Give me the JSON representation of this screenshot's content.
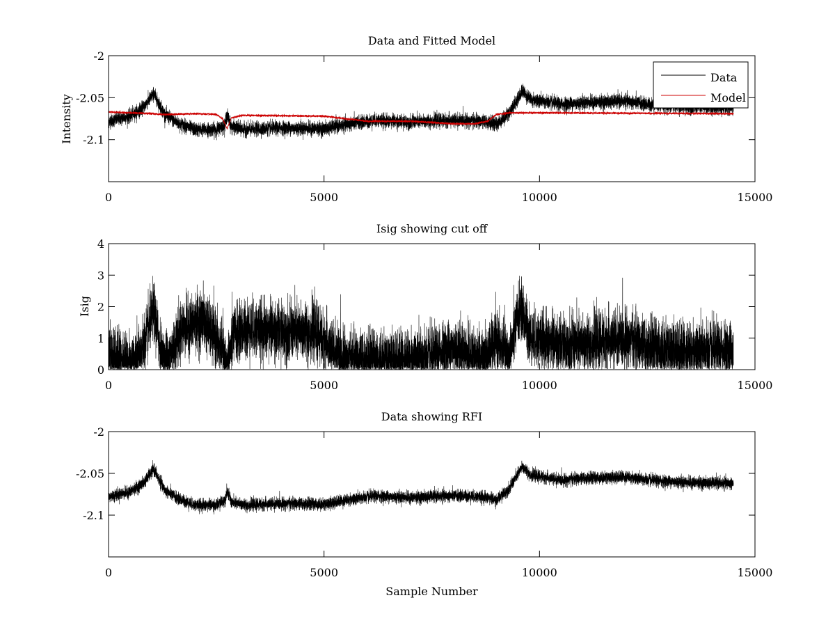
{
  "chart_data": [
    {
      "type": "line",
      "title": "Data and Fitted Model",
      "xlabel": "",
      "ylabel": "Intensity",
      "xlim": [
        0,
        15000
      ],
      "ylim": [
        -2.15,
        -2.0
      ],
      "x_ticks": [
        0,
        5000,
        10000,
        15000
      ],
      "y_ticks": [
        -2.1,
        -2.05,
        -2.0
      ],
      "x_tick_labels": [
        "0",
        "5000",
        "10000",
        "15000"
      ],
      "y_tick_labels": [
        "-2.1",
        "-2.05",
        "-2"
      ],
      "grid": false,
      "legend_placement": "top-right",
      "series": [
        {
          "name": "Data",
          "color": "#000000",
          "noise": 0.004,
          "x": [
            0,
            500,
            800,
            1050,
            1300,
            1600,
            2000,
            2500,
            2700,
            2750,
            2850,
            3200,
            4000,
            5000,
            5500,
            6200,
            7000,
            7800,
            8300,
            8800,
            9000,
            9300,
            9600,
            9800,
            10500,
            11000,
            11500,
            12000,
            12500,
            13500,
            14500
          ],
          "y": [
            -2.078,
            -2.072,
            -2.062,
            -2.045,
            -2.07,
            -2.08,
            -2.088,
            -2.088,
            -2.082,
            -2.07,
            -2.085,
            -2.088,
            -2.086,
            -2.087,
            -2.082,
            -2.077,
            -2.079,
            -2.077,
            -2.077,
            -2.079,
            -2.082,
            -2.068,
            -2.042,
            -2.052,
            -2.058,
            -2.056,
            -2.055,
            -2.054,
            -2.058,
            -2.061,
            -2.062
          ]
        },
        {
          "name": "Model",
          "color": "#cc0000",
          "noise": 0.0006,
          "x": [
            0,
            1000,
            1300,
            2000,
            2500,
            2650,
            2750,
            2850,
            3100,
            5000,
            6000,
            7000,
            8000,
            8500,
            8800,
            9000,
            9300,
            10000,
            14500
          ],
          "y": [
            -2.067,
            -2.069,
            -2.07,
            -2.069,
            -2.07,
            -2.075,
            -2.087,
            -2.074,
            -2.071,
            -2.072,
            -2.078,
            -2.078,
            -2.081,
            -2.081,
            -2.078,
            -2.07,
            -2.068,
            -2.068,
            -2.069
          ]
        }
      ]
    },
    {
      "type": "line",
      "title": "Isig showing cut off",
      "xlabel": "",
      "ylabel": "Isig",
      "xlim": [
        0,
        15000
      ],
      "ylim": [
        0,
        4
      ],
      "x_ticks": [
        0,
        5000,
        10000,
        15000
      ],
      "y_ticks": [
        0,
        1,
        2,
        3,
        4
      ],
      "x_tick_labels": [
        "0",
        "5000",
        "10000",
        "15000"
      ],
      "y_tick_labels": [
        "0",
        "1",
        "2",
        "3",
        "4"
      ],
      "grid": false,
      "series": [
        {
          "color": "#000000",
          "noise": 0.45,
          "x": [
            0,
            600,
            800,
            1050,
            1250,
            1400,
            1700,
            2200,
            2600,
            2750,
            2900,
            3200,
            4200,
            4800,
            5200,
            5600,
            6500,
            7500,
            8000,
            8500,
            8700,
            9000,
            9300,
            9550,
            9800,
            10500,
            11000,
            12000,
            12500,
            13500,
            14500
          ],
          "y": [
            0.5,
            0.2,
            0.7,
            1.9,
            0.3,
            0.4,
            1.3,
            1.6,
            0.7,
            0.1,
            1.1,
            1.3,
            1.2,
            1.2,
            0.6,
            0.3,
            0.3,
            0.4,
            0.7,
            0.4,
            0.3,
            0.9,
            0.4,
            2.0,
            1.0,
            0.8,
            0.8,
            1.0,
            0.7,
            0.6,
            0.6
          ]
        }
      ]
    },
    {
      "type": "line",
      "title": "Data showing RFI",
      "xlabel": "Sample Number",
      "ylabel": "",
      "xlim": [
        0,
        15000
      ],
      "ylim": [
        -2.15,
        -2.0
      ],
      "x_ticks": [
        0,
        5000,
        10000,
        15000
      ],
      "y_ticks": [
        -2.1,
        -2.05,
        -2.0
      ],
      "x_tick_labels": [
        "0",
        "5000",
        "10000",
        "15000"
      ],
      "y_tick_labels": [
        "-2.1",
        "-2.05",
        "-2"
      ],
      "grid": false,
      "series": [
        {
          "color": "#000000",
          "noise": 0.0035,
          "x": [
            0,
            500,
            800,
            1050,
            1300,
            1600,
            2000,
            2500,
            2700,
            2750,
            2850,
            3200,
            4000,
            5000,
            5500,
            6200,
            7000,
            7800,
            8300,
            8800,
            9000,
            9300,
            9600,
            9800,
            10500,
            11000,
            11500,
            12000,
            12500,
            13500,
            14500
          ],
          "y": [
            -2.078,
            -2.072,
            -2.062,
            -2.045,
            -2.07,
            -2.08,
            -2.088,
            -2.088,
            -2.082,
            -2.07,
            -2.085,
            -2.088,
            -2.086,
            -2.087,
            -2.082,
            -2.077,
            -2.079,
            -2.077,
            -2.077,
            -2.079,
            -2.082,
            -2.068,
            -2.042,
            -2.052,
            -2.058,
            -2.056,
            -2.055,
            -2.054,
            -2.058,
            -2.061,
            -2.062
          ]
        }
      ]
    }
  ]
}
